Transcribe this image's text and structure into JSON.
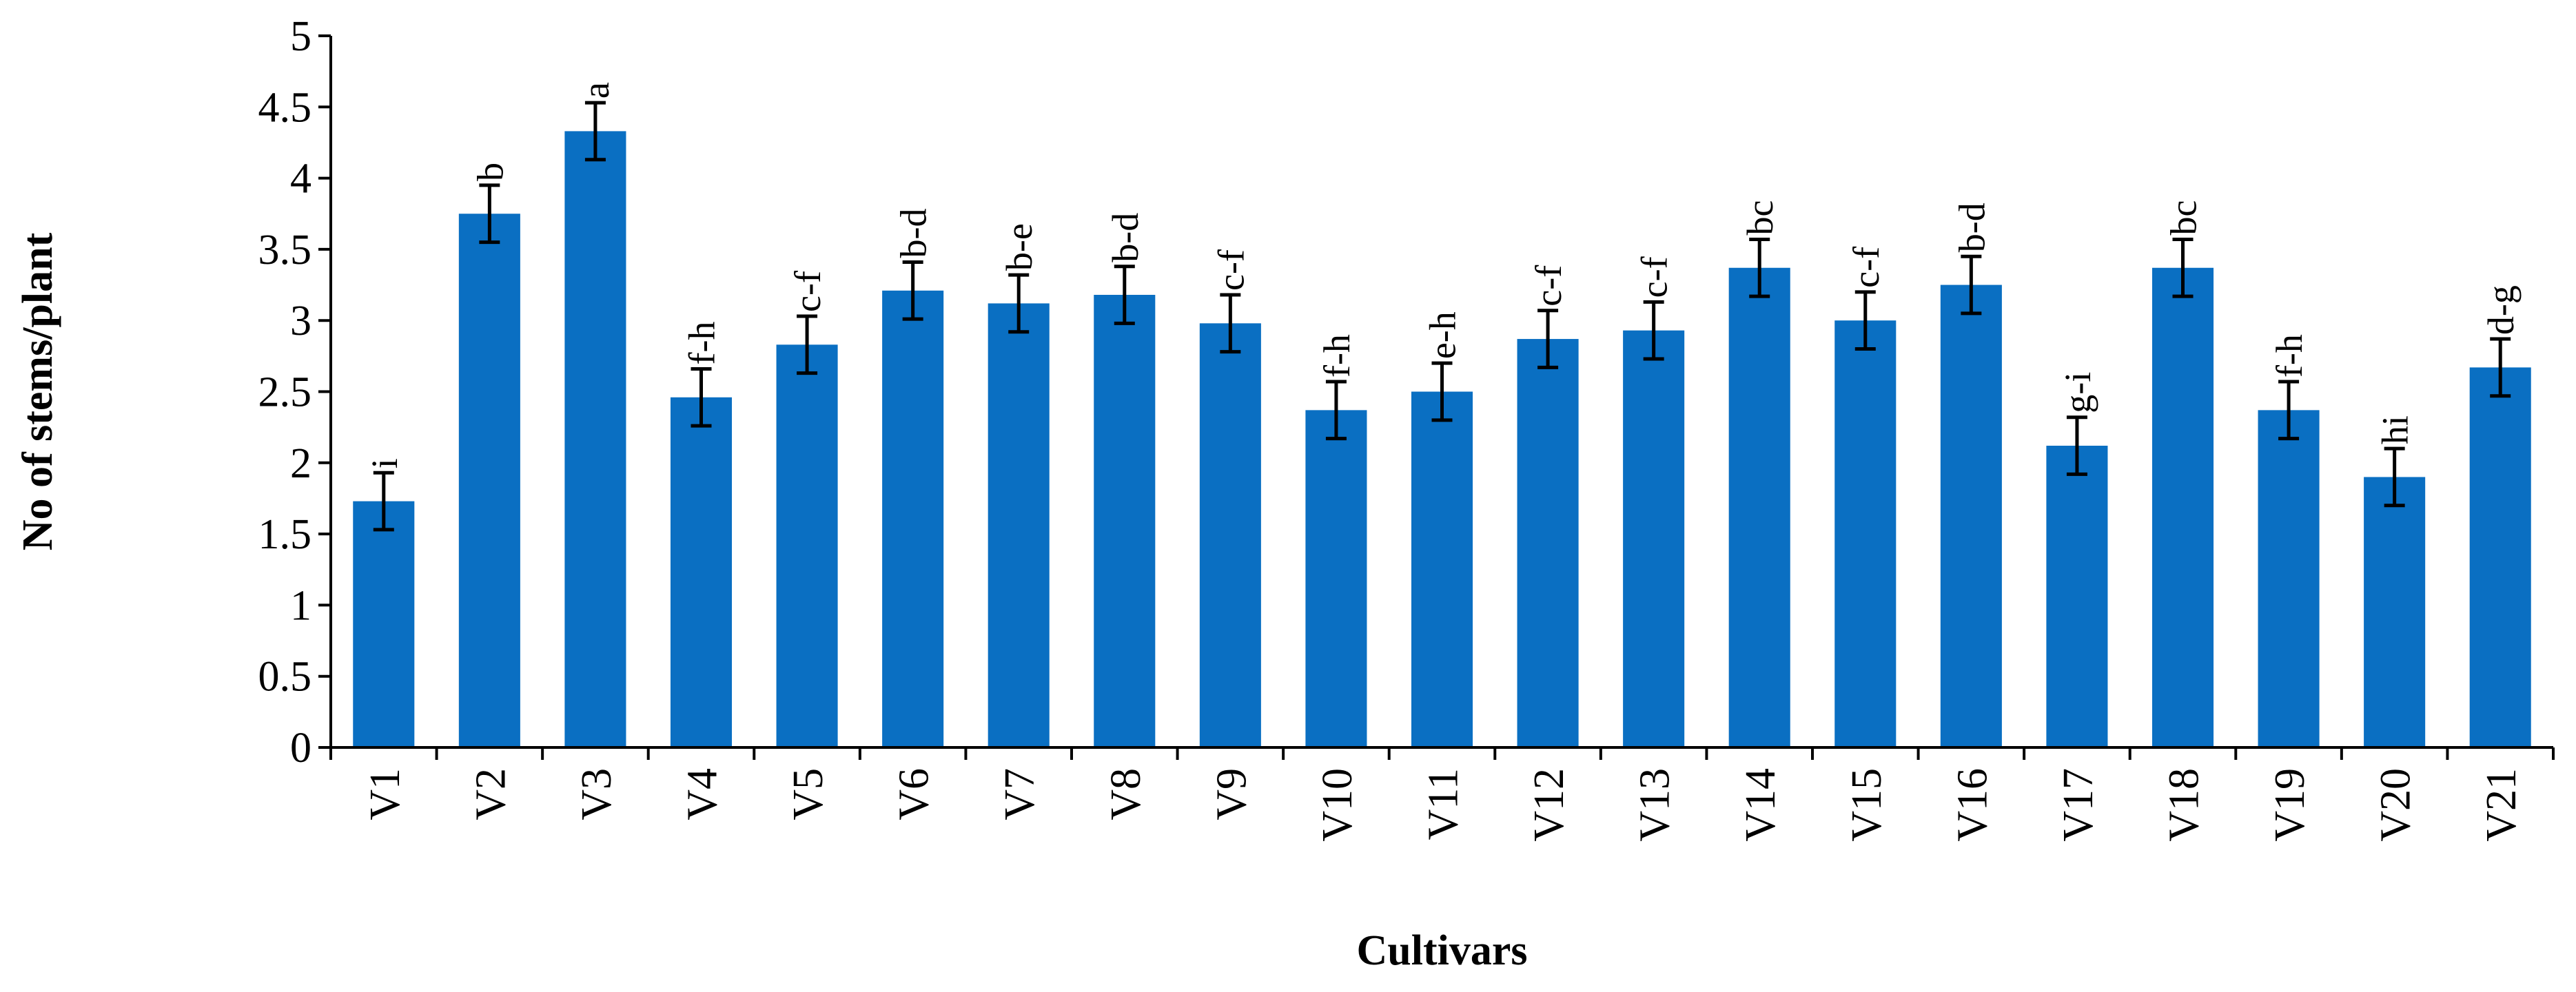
{
  "chart_data": {
    "type": "bar",
    "title": "",
    "xlabel": "Cultivars",
    "ylabel": "No of stems/plant",
    "ylim": [
      0,
      5
    ],
    "yticks": [
      "0",
      "0.5",
      "1",
      "1.5",
      "2",
      "2.5",
      "3",
      "3.5",
      "4",
      "4.5",
      "5"
    ],
    "grid": false,
    "legend": "none",
    "bar_color": "#0A6FC2",
    "categories": [
      "V1",
      "V2",
      "V3",
      "V4",
      "V5",
      "V6",
      "V7",
      "V8",
      "V9",
      "V10",
      "V11",
      "V12",
      "V13",
      "V14",
      "V15",
      "V16",
      "V17",
      "V18",
      "V19",
      "V20",
      "V21"
    ],
    "values": [
      1.73,
      3.75,
      4.33,
      2.46,
      2.83,
      3.21,
      3.12,
      3.18,
      2.98,
      2.37,
      2.5,
      2.87,
      2.93,
      3.37,
      3.0,
      3.25,
      2.12,
      3.37,
      2.37,
      1.9,
      2.67
    ],
    "errors": [
      0.2,
      0.2,
      0.2,
      0.2,
      0.2,
      0.2,
      0.2,
      0.2,
      0.2,
      0.2,
      0.2,
      0.2,
      0.2,
      0.2,
      0.2,
      0.2,
      0.2,
      0.2,
      0.2,
      0.2,
      0.2
    ],
    "significance_letters": [
      "i",
      "b",
      "a",
      "f-h",
      "c-f",
      "b-d",
      "b-e",
      "b-d",
      "c-f",
      "f-h",
      "e-h",
      "c-f",
      "c-f",
      "bc",
      "c-f",
      "b-d",
      "g-i",
      "bc",
      "f-h",
      "hi",
      "d-g"
    ]
  }
}
